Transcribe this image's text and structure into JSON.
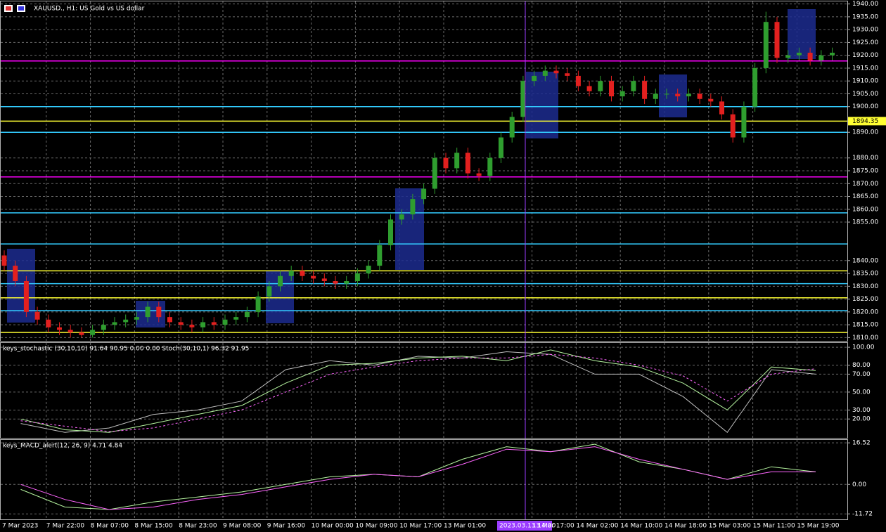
{
  "chart_data": {
    "type": "candlestick",
    "title": "XAUUSD., H1:  US Gold vs US dollar",
    "categories": [
      "7 Mar 2023",
      null,
      null,
      null,
      "7 Mar 22:00",
      null,
      null,
      null,
      "8 Mar 07:00",
      null,
      null,
      null,
      "8 Mar 15:00",
      null,
      null,
      null,
      "8 Mar 23:00",
      null,
      null,
      null,
      "9 Mar 08:00",
      null,
      null,
      null,
      "9 Mar 16:00",
      null,
      null,
      null,
      "10 Mar 00:00",
      null,
      null,
      null,
      "10 Mar 09:00",
      null,
      null,
      null,
      "10 Mar 17:00",
      null,
      null,
      null,
      "13 Mar 01:00",
      null,
      null,
      null,
      null,
      null,
      null,
      null,
      "13 Mar 17:00",
      null,
      null,
      null,
      "14 Mar 02:00",
      null,
      null,
      null,
      "14 Mar 10:00",
      null,
      null,
      null,
      "14 Mar 18:00",
      null,
      null,
      null,
      "15 Mar 03:00",
      null,
      null,
      null,
      "15 Mar 11:00",
      null,
      null,
      null,
      "15 Mar 19:00",
      null,
      null,
      null
    ],
    "open": [
      1842,
      1838,
      1832,
      1820,
      1817,
      1814,
      1813,
      1812,
      1811,
      1813,
      1815,
      1816,
      1817,
      1818,
      1822,
      1818,
      1816,
      1815,
      1814,
      1816,
      1815,
      1817,
      1818,
      1820,
      1826,
      1830,
      1834,
      1836,
      1834,
      1833,
      1832,
      1831,
      1832,
      1835,
      1838,
      1846,
      1856,
      1858,
      1864,
      1868,
      1880,
      1876,
      1882,
      1874,
      1873,
      1880,
      1888,
      1896,
      1910,
      1912,
      1914,
      1913,
      1912,
      1908,
      1906,
      1910,
      1904,
      1906,
      1910,
      1903,
      1905,
      1905,
      1904,
      1905,
      1903,
      1902,
      1897,
      1888,
      1900,
      1915,
      1933,
      1919,
      1920,
      1921,
      1918,
      1920
    ],
    "high": [
      1844,
      1840,
      1834,
      1822,
      1819,
      1816,
      1815,
      1814,
      1815,
      1817,
      1818,
      1819,
      1820,
      1824,
      1824,
      1820,
      1818,
      1817,
      1818,
      1818,
      1819,
      1820,
      1822,
      1828,
      1832,
      1836,
      1838,
      1838,
      1836,
      1835,
      1834,
      1834,
      1837,
      1840,
      1848,
      1858,
      1860,
      1866,
      1870,
      1882,
      1882,
      1884,
      1884,
      1876,
      1882,
      1890,
      1898,
      1912,
      1914,
      1916,
      1916,
      1915,
      1914,
      1910,
      1912,
      1912,
      1908,
      1912,
      1912,
      1907,
      1907,
      1907,
      1907,
      1907,
      1905,
      1904,
      1899,
      1902,
      1917,
      1937,
      1935,
      1922,
      1923,
      1923,
      1922,
      1923
    ],
    "low": [
      1836,
      1830,
      1818,
      1815,
      1812,
      1811,
      1810,
      1810,
      1810,
      1811,
      1813,
      1814,
      1815,
      1816,
      1816,
      1814,
      1813,
      1812,
      1812,
      1813,
      1813,
      1815,
      1816,
      1818,
      1824,
      1828,
      1832,
      1832,
      1831,
      1830,
      1829,
      1829,
      1830,
      1833,
      1836,
      1844,
      1854,
      1856,
      1862,
      1866,
      1874,
      1874,
      1872,
      1871,
      1871,
      1878,
      1886,
      1894,
      1908,
      1910,
      1911,
      1910,
      1906,
      1904,
      1904,
      1902,
      1902,
      1904,
      1901,
      1901,
      1903,
      1902,
      1902,
      1901,
      1900,
      1895,
      1886,
      1886,
      1898,
      1913,
      1917,
      1917,
      1918,
      1916,
      1916,
      1918
    ],
    "close": [
      1838,
      1832,
      1820,
      1817,
      1814,
      1813,
      1812,
      1811,
      1813,
      1815,
      1816,
      1817,
      1818,
      1822,
      1818,
      1816,
      1815,
      1814,
      1816,
      1815,
      1817,
      1818,
      1820,
      1826,
      1830,
      1834,
      1836,
      1834,
      1833,
      1832,
      1831,
      1832,
      1835,
      1838,
      1846,
      1856,
      1858,
      1864,
      1868,
      1880,
      1876,
      1882,
      1874,
      1873,
      1880,
      1888,
      1896,
      1910,
      1912,
      1914,
      1913,
      1912,
      1908,
      1906,
      1910,
      1904,
      1906,
      1910,
      1903,
      1905,
      1905,
      1904,
      1905,
      1903,
      1902,
      1897,
      1888,
      1900,
      1915,
      1933,
      1919,
      1920,
      1921,
      1918,
      1920,
      1921
    ],
    "up_color": "#2f9e2f",
    "down_color": "#e3201f",
    "ylim": [
      1809,
      1941
    ],
    "yticks": [
      {
        "value": 1940,
        "label": "1940.00"
      },
      {
        "value": 1935,
        "label": "1935.00"
      },
      {
        "value": 1930,
        "label": "1930.00"
      },
      {
        "value": 1925,
        "label": "1925.00"
      },
      {
        "value": 1920,
        "label": "1920.00"
      },
      {
        "value": 1915,
        "label": "1915.00"
      },
      {
        "value": 1910,
        "label": "1910.00"
      },
      {
        "value": 1905,
        "label": "1905.00"
      },
      {
        "value": 1900,
        "label": "1900.00"
      },
      {
        "value": 1890,
        "label": "1890.00"
      },
      {
        "value": 1880,
        "label": "1880.00"
      },
      {
        "value": 1875,
        "label": "1875.00"
      },
      {
        "value": 1870,
        "label": "1870.00"
      },
      {
        "value": 1865,
        "label": "1865.00"
      },
      {
        "value": 1860,
        "label": "1860.00"
      },
      {
        "value": 1855,
        "label": "1855.00"
      },
      {
        "value": 1840,
        "label": "1840.00"
      },
      {
        "value": 1835,
        "label": "1835.00"
      },
      {
        "value": 1830,
        "label": "1830.00"
      },
      {
        "value": 1825,
        "label": "1825.00"
      },
      {
        "value": 1820,
        "label": "1820.00"
      },
      {
        "value": 1815,
        "label": "1815.00"
      },
      {
        "value": 1810,
        "label": "1810.00"
      }
    ],
    "grid": true,
    "levels": [
      {
        "value": 1917.8,
        "color": "#ff00ff"
      },
      {
        "value": 1900,
        "color": "#33ccff"
      },
      {
        "value": 1894.35,
        "color": "#ffff33",
        "label": "1894.35"
      },
      {
        "value": 1890,
        "color": "#33ccff"
      },
      {
        "value": 1872.6,
        "color": "#ff00ff"
      },
      {
        "value": 1858.6,
        "color": "#33ccff"
      },
      {
        "value": 1846.5,
        "color": "#33ccff"
      },
      {
        "value": 1836,
        "color": "#ffff33"
      },
      {
        "value": 1831,
        "color": "#33ccff"
      },
      {
        "value": 1825.5,
        "color": "#ffff33"
      },
      {
        "value": 1820.5,
        "color": "#33ccff"
      },
      {
        "value": 1812,
        "color": "#ffff33"
      }
    ],
    "crosshair_label": "2023.03.13 14:00",
    "indicators": [
      {
        "type": "line",
        "title": "keys_stochastic (30,10,10) 91.64 90.95 0.00 0.00 Stoch(30,10,1) 96.32 91.95",
        "ylim": [
          -1,
          104
        ],
        "yticks": [
          {
            "value": 100,
            "label": "100.00"
          },
          {
            "value": 80,
            "label": "80.00"
          },
          {
            "value": 70,
            "label": "70.00"
          },
          {
            "value": 50,
            "label": "50.00"
          },
          {
            "value": 30,
            "label": "30.00"
          },
          {
            "value": 20,
            "label": "20.00"
          }
        ],
        "series": [
          {
            "color": "#bfbfbf",
            "dash": false,
            "values": [
              15,
              5,
              10,
              25,
              30,
              40,
              75,
              85,
              80,
              90,
              88,
              95,
              92,
              70,
              70,
              45,
              5,
              75,
              70
            ]
          },
          {
            "color": "#b6f5a0",
            "dash": false,
            "values": [
              20,
              8,
              5,
              15,
              25,
              35,
              60,
              80,
              82,
              88,
              90,
              85,
              97,
              85,
              78,
              60,
              30,
              78,
              74
            ]
          },
          {
            "color": "#ff66ff",
            "dash": true,
            "values": [
              18,
              12,
              6,
              10,
              20,
              30,
              50,
              70,
              78,
              85,
              88,
              88,
              92,
              88,
              80,
              68,
              40,
              70,
              76
            ]
          }
        ]
      },
      {
        "type": "line",
        "title": "keys_MACD_alert(12, 26, 9) 4.71 4.84",
        "ylim": [
          -13.9,
          17.4
        ],
        "yticks": [
          {
            "value": 16.52,
            "label": "16.52"
          },
          {
            "value": 0,
            "label": "0.00"
          },
          {
            "value": -11.72,
            "label": "-11.72"
          }
        ],
        "series": [
          {
            "color": "#b6f5a0",
            "dash": false,
            "values": [
              -2,
              -9,
              -10,
              -7,
              -5,
              -3,
              0,
              3,
              4,
              3,
              10,
              15,
              13,
              16,
              9,
              6,
              2,
              7,
              5
            ]
          },
          {
            "color": "#ff66ff",
            "dash": false,
            "values": [
              0,
              -6,
              -10,
              -9,
              -6,
              -4,
              -1,
              2,
              4,
              3,
              8,
              14,
              13,
              15,
              10,
              6,
              2,
              5,
              5
            ]
          }
        ]
      }
    ]
  }
}
